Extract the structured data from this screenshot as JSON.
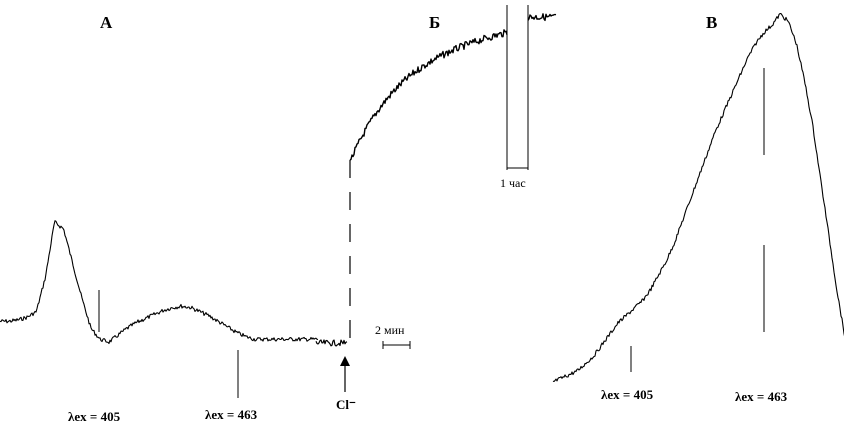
{
  "panels": {
    "a": {
      "label": "А",
      "excitation_labels": [
        "λex = 405",
        "λex = 463"
      ],
      "excitation_colors": [
        "#000000"
      ]
    },
    "b": {
      "label": "Б",
      "time_scale_long": "1 час",
      "time_scale_short": "2 мин",
      "injection_label": "Cl⁻"
    },
    "c": {
      "label": "В",
      "excitation_labels": [
        "λex = 405",
        "λex = 463"
      ]
    }
  },
  "chart_data": [
    {
      "type": "line",
      "panel": "А",
      "title": "",
      "xlabel": "",
      "ylabel": "",
      "series": [
        {
          "x": [
            0,
            1,
            2,
            3,
            4,
            5,
            6,
            7,
            8,
            9,
            10,
            11,
            12,
            13,
            14,
            15,
            16,
            17,
            18,
            19,
            20,
            21,
            22,
            23,
            24,
            25,
            26,
            27,
            28,
            29,
            30,
            31,
            32,
            33,
            34,
            35
          ],
          "values": [
            0.13,
            0.13,
            0.14,
            0.16,
            0.2,
            0.45,
            0.85,
            0.8,
            0.55,
            0.3,
            0.08,
            0.0,
            -0.02,
            0.03,
            0.08,
            0.12,
            0.15,
            0.18,
            0.21,
            0.23,
            0.24,
            0.23,
            0.2,
            0.17,
            0.13,
            0.09,
            0.05,
            0.02,
            0.0,
            0.0,
            0.0,
            0.0,
            0.0,
            0.0,
            0.0,
            0.0
          ]
        }
      ],
      "markers": [
        405,
        463
      ],
      "grid": false
    },
    {
      "type": "line",
      "panel": "Б",
      "title": "",
      "xlabel": "",
      "ylabel": "",
      "series": [
        {
          "x": [
            0,
            1,
            2,
            3,
            4,
            5,
            6,
            7,
            8,
            9,
            10,
            11,
            12,
            13,
            14,
            15,
            16,
            17,
            18,
            19,
            20
          ],
          "values": [
            0.0,
            0.0,
            0.0,
            0.55,
            0.68,
            0.74,
            0.77,
            0.79,
            0.8,
            0.81,
            0.82,
            0.83,
            0.84,
            0.845,
            0.85,
            0.855,
            0.86,
            0.865,
            0.87,
            0.875,
            0.88
          ]
        }
      ],
      "grid": false
    },
    {
      "type": "line",
      "panel": "В",
      "title": "",
      "xlabel": "",
      "ylabel": "",
      "series": [
        {
          "x": [
            0,
            1,
            2,
            3,
            4,
            5,
            6,
            7,
            8,
            9,
            10,
            11,
            12,
            13,
            14,
            15,
            16,
            17,
            18,
            19,
            20,
            21,
            22,
            23,
            24,
            25,
            26,
            27,
            28,
            29,
            30,
            31,
            32,
            33,
            34,
            35,
            36
          ],
          "values": [
            0.0,
            0.01,
            0.02,
            0.03,
            0.05,
            0.07,
            0.1,
            0.13,
            0.16,
            0.18,
            0.2,
            0.22,
            0.25,
            0.29,
            0.33,
            0.38,
            0.44,
            0.5,
            0.56,
            0.62,
            0.68,
            0.73,
            0.78,
            0.83,
            0.88,
            0.92,
            0.95,
            0.97,
            1.0,
            0.98,
            0.92,
            0.82,
            0.7,
            0.55,
            0.4,
            0.25,
            0.12
          ]
        }
      ],
      "markers": [
        405,
        463
      ],
      "grid": false
    }
  ]
}
